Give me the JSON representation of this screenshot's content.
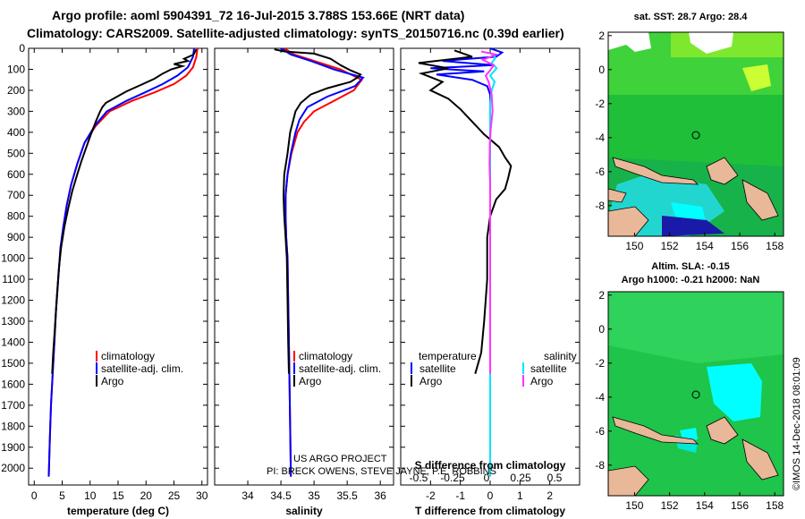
{
  "title_line1": "Argo profile: aoml 5904391_72 16-Jul-2015 3.788S 153.66E (NRT data)",
  "title_line2": "Climatology: CARS2009. Satellite-adjusted climatology: synTS_20150716.nc (0.39d earlier)",
  "credit_line1": "US ARGO PROJECT",
  "credit_line2": "PI: BRECK OWENS, STEVE JAYNE, P.E. ROBBINS",
  "watermark": "©IMOS 14-Dec-2018 08:01:09",
  "colors": {
    "climatology": "#ff0000",
    "satellite": "#0000ff",
    "argo": "#000000",
    "sal_satellite": "#00e5ff",
    "sal_argo": "#ff33ff",
    "land": "#e8b899",
    "cyan": "#00ffff",
    "green": "#2ecc40"
  },
  "chart_data": [
    {
      "type": "line",
      "id": "temperature",
      "xlabel": "temperature (deg C)",
      "ylabel": "",
      "xlim": [
        -1,
        31
      ],
      "ylim": [
        2080,
        0
      ],
      "xticks": [
        "0",
        "5",
        "10",
        "15",
        "20",
        "25",
        "30"
      ],
      "yticks": [
        "0",
        "100",
        "200",
        "300",
        "400",
        "500",
        "600",
        "700",
        "800",
        "900",
        "1000",
        "1100",
        "1200",
        "1300",
        "1400",
        "1500",
        "1600",
        "1700",
        "1800",
        "1900",
        "2000"
      ],
      "legend": [
        "climatology",
        "satellite-adj. clim.",
        "Argo"
      ],
      "series": [
        {
          "name": "climatology",
          "points": [
            [
              29.2,
              0
            ],
            [
              29.0,
              40
            ],
            [
              28.4,
              90
            ],
            [
              27.2,
              130
            ],
            [
              25.0,
              170
            ],
            [
              21.5,
              210
            ],
            [
              17.5,
              250
            ],
            [
              13.5,
              300
            ],
            [
              11.0,
              370
            ],
            [
              9.0,
              450
            ],
            [
              7.7,
              550
            ],
            [
              6.6,
              650
            ],
            [
              5.8,
              750
            ],
            [
              5.2,
              850
            ],
            [
              4.7,
              950
            ],
            [
              4.3,
              1100
            ],
            [
              3.9,
              1250
            ],
            [
              3.6,
              1400
            ],
            [
              3.3,
              1550
            ],
            [
              3.0,
              1700
            ],
            [
              2.8,
              1850
            ],
            [
              2.6,
              2040
            ]
          ]
        },
        {
          "name": "satellite-adj. clim.",
          "points": [
            [
              28.6,
              0
            ],
            [
              28.4,
              40
            ],
            [
              27.5,
              90
            ],
            [
              25.6,
              130
            ],
            [
              23.0,
              170
            ],
            [
              19.8,
              210
            ],
            [
              16.5,
              250
            ],
            [
              13.0,
              300
            ],
            [
              10.8,
              370
            ],
            [
              9.0,
              450
            ],
            [
              7.7,
              550
            ],
            [
              6.6,
              650
            ],
            [
              5.8,
              750
            ],
            [
              5.2,
              850
            ],
            [
              4.7,
              950
            ],
            [
              4.3,
              1100
            ],
            [
              3.9,
              1250
            ],
            [
              3.6,
              1400
            ],
            [
              3.3,
              1550
            ],
            [
              3.0,
              1700
            ],
            [
              2.8,
              1850
            ],
            [
              2.6,
              2040
            ]
          ]
        },
        {
          "name": "Argo",
          "points": [
            [
              29.0,
              5
            ],
            [
              28.5,
              30
            ],
            [
              26.8,
              50
            ],
            [
              27.5,
              60
            ],
            [
              25.0,
              75
            ],
            [
              26.5,
              85
            ],
            [
              24.5,
              100
            ],
            [
              23.0,
              120
            ],
            [
              21.5,
              145
            ],
            [
              19.0,
              175
            ],
            [
              16.5,
              205
            ],
            [
              14.5,
              235
            ],
            [
              12.8,
              260
            ],
            [
              12.2,
              280
            ],
            [
              11.8,
              300
            ],
            [
              11.0,
              350
            ],
            [
              10.0,
              420
            ],
            [
              9.2,
              480
            ],
            [
              8.4,
              540
            ],
            [
              7.7,
              600
            ],
            [
              6.8,
              680
            ],
            [
              6.1,
              760
            ],
            [
              5.4,
              850
            ],
            [
              4.8,
              950
            ],
            [
              4.4,
              1050
            ],
            [
              4.0,
              1200
            ],
            [
              3.7,
              1330
            ],
            [
              3.4,
              1450
            ],
            [
              3.2,
              1550
            ]
          ]
        }
      ]
    },
    {
      "type": "line",
      "id": "salinity",
      "xlabel": "salinity",
      "ylabel": "",
      "xlim": [
        33.5,
        36.2
      ],
      "ylim": [
        2080,
        0
      ],
      "xticks": [
        "34",
        "34.5",
        "35",
        "35.5",
        "36"
      ],
      "legend": [
        "climatology",
        "satellite-adj. clim.",
        "Argo"
      ],
      "series": [
        {
          "name": "climatology",
          "points": [
            [
              34.55,
              0
            ],
            [
              34.7,
              30
            ],
            [
              35.0,
              60
            ],
            [
              35.4,
              100
            ],
            [
              35.72,
              150
            ],
            [
              35.6,
              200
            ],
            [
              35.3,
              250
            ],
            [
              35.0,
              300
            ],
            [
              34.85,
              350
            ],
            [
              34.75,
              400
            ],
            [
              34.66,
              500
            ],
            [
              34.6,
              600
            ],
            [
              34.57,
              700
            ],
            [
              34.57,
              800
            ],
            [
              34.58,
              900
            ],
            [
              34.6,
              1000
            ],
            [
              34.61,
              1200
            ],
            [
              34.62,
              1400
            ],
            [
              34.63,
              1600
            ],
            [
              34.64,
              1800
            ],
            [
              34.65,
              2040
            ]
          ]
        },
        {
          "name": "satellite-adj. clim.",
          "points": [
            [
              34.5,
              0
            ],
            [
              34.65,
              30
            ],
            [
              34.95,
              60
            ],
            [
              35.3,
              100
            ],
            [
              35.74,
              140
            ],
            [
              35.62,
              180
            ],
            [
              35.2,
              230
            ],
            [
              34.9,
              280
            ],
            [
              34.78,
              340
            ],
            [
              34.72,
              400
            ],
            [
              34.65,
              500
            ],
            [
              34.6,
              600
            ],
            [
              34.57,
              700
            ],
            [
              34.57,
              800
            ],
            [
              34.58,
              900
            ],
            [
              34.6,
              1000
            ],
            [
              34.61,
              1200
            ],
            [
              34.62,
              1400
            ],
            [
              34.63,
              1600
            ],
            [
              34.64,
              1800
            ],
            [
              34.65,
              2040
            ]
          ]
        },
        {
          "name": "Argo",
          "points": [
            [
              34.4,
              5
            ],
            [
              34.55,
              15
            ],
            [
              35.0,
              25
            ],
            [
              35.25,
              50
            ],
            [
              35.4,
              80
            ],
            [
              35.55,
              105
            ],
            [
              35.7,
              125
            ],
            [
              35.65,
              140
            ],
            [
              35.55,
              160
            ],
            [
              35.2,
              190
            ],
            [
              34.95,
              220
            ],
            [
              34.8,
              260
            ],
            [
              34.72,
              300
            ],
            [
              34.68,
              350
            ],
            [
              34.64,
              400
            ],
            [
              34.6,
              500
            ],
            [
              34.55,
              600
            ],
            [
              34.54,
              700
            ],
            [
              34.55,
              800
            ],
            [
              34.57,
              900
            ],
            [
              34.59,
              1000
            ],
            [
              34.6,
              1200
            ],
            [
              34.61,
              1400
            ],
            [
              34.62,
              1550
            ]
          ]
        }
      ]
    },
    {
      "type": "line",
      "id": "difference",
      "xlabel": "T difference from climatology",
      "x2label": "S difference from climatology",
      "xlim": [
        -3,
        3
      ],
      "ylim": [
        2080,
        0
      ],
      "xticks": [
        "-2",
        "-1",
        "0",
        "1",
        "2"
      ],
      "x2ticks": [
        "-0.5",
        "-0.25",
        "0",
        "0.25",
        "0.5"
      ],
      "legend_titles": [
        "temperature",
        "salinity"
      ],
      "legend": [
        "satellite",
        "Argo",
        "satellite",
        "Argo"
      ],
      "series": [
        {
          "name": "T satellite",
          "points": [
            [
              0,
              0
            ],
            [
              0.4,
              20
            ],
            [
              0.2,
              40
            ],
            [
              -1.6,
              60
            ],
            [
              0.1,
              80
            ],
            [
              -2.0,
              95
            ],
            [
              -0.2,
              110
            ],
            [
              -1.8,
              125
            ],
            [
              -0.6,
              150
            ],
            [
              -0.1,
              180
            ],
            [
              0,
              220
            ],
            [
              0,
              400
            ],
            [
              0,
              800
            ],
            [
              0,
              1200
            ],
            [
              0,
              1600
            ]
          ]
        },
        {
          "name": "T Argo",
          "points": [
            [
              -1.2,
              10
            ],
            [
              -0.6,
              40
            ],
            [
              -2.4,
              70
            ],
            [
              -1.4,
              95
            ],
            [
              -2.3,
              120
            ],
            [
              -1.6,
              160
            ],
            [
              -2.0,
              200
            ],
            [
              -1.4,
              240
            ],
            [
              -1.0,
              290
            ],
            [
              -0.6,
              350
            ],
            [
              -0.2,
              410
            ],
            [
              0.3,
              470
            ],
            [
              0.5,
              520
            ],
            [
              0.7,
              560
            ],
            [
              0.6,
              620
            ],
            [
              0.5,
              670
            ],
            [
              0.2,
              720
            ],
            [
              0.0,
              800
            ],
            [
              -0.1,
              900
            ],
            [
              -0.1,
              1100
            ],
            [
              -0.2,
              1300
            ],
            [
              -0.3,
              1450
            ],
            [
              -0.5,
              1550
            ]
          ]
        },
        {
          "name": "S satellite",
          "points": [
            [
              0,
              20
            ],
            [
              0.18,
              45
            ],
            [
              0.05,
              70
            ],
            [
              0.22,
              95
            ],
            [
              0,
              130
            ],
            [
              0.15,
              160
            ],
            [
              0.05,
              200
            ],
            [
              0.0,
              260
            ],
            [
              0,
              400
            ],
            [
              0,
              800
            ],
            [
              0,
              1200
            ],
            [
              0,
              1600
            ],
            [
              0,
              2040
            ]
          ]
        },
        {
          "name": "S Argo",
          "points": [
            [
              -0.3,
              15
            ],
            [
              0.2,
              30
            ],
            [
              -0.25,
              55
            ],
            [
              0.12,
              80
            ],
            [
              0,
              105
            ],
            [
              -0.15,
              130
            ],
            [
              -0.05,
              160
            ],
            [
              0.05,
              220
            ],
            [
              0.08,
              300
            ],
            [
              0.02,
              380
            ],
            [
              -0.01,
              450
            ],
            [
              -0.02,
              550
            ],
            [
              0,
              650
            ],
            [
              0,
              800
            ],
            [
              0,
              1000
            ],
            [
              0,
              1200
            ],
            [
              0,
              1400
            ],
            [
              0,
              1550
            ]
          ]
        }
      ]
    },
    {
      "type": "heatmap",
      "id": "sst_map",
      "title": "sat. SST: 28.7 Argo: 28.4",
      "xlim": [
        148.5,
        158.5
      ],
      "ylim": [
        -9.8,
        2.2
      ],
      "xticks": [
        "150",
        "152",
        "154",
        "156",
        "158"
      ],
      "yticks": [
        "2",
        "0",
        "-2",
        "-4",
        "-6",
        "-8"
      ]
    },
    {
      "type": "heatmap",
      "id": "sla_map",
      "title_line1": "Altim. SLA: -0.15",
      "title_line2": "Argo h1000: -0.21 h2000: NaN",
      "xlim": [
        148.5,
        158.5
      ],
      "ylim": [
        -9.8,
        2.2
      ],
      "xticks": [
        "150",
        "152",
        "154",
        "156",
        "158"
      ],
      "yticks": [
        "2",
        "0",
        "-2",
        "-4",
        "-6",
        "-8"
      ]
    }
  ]
}
